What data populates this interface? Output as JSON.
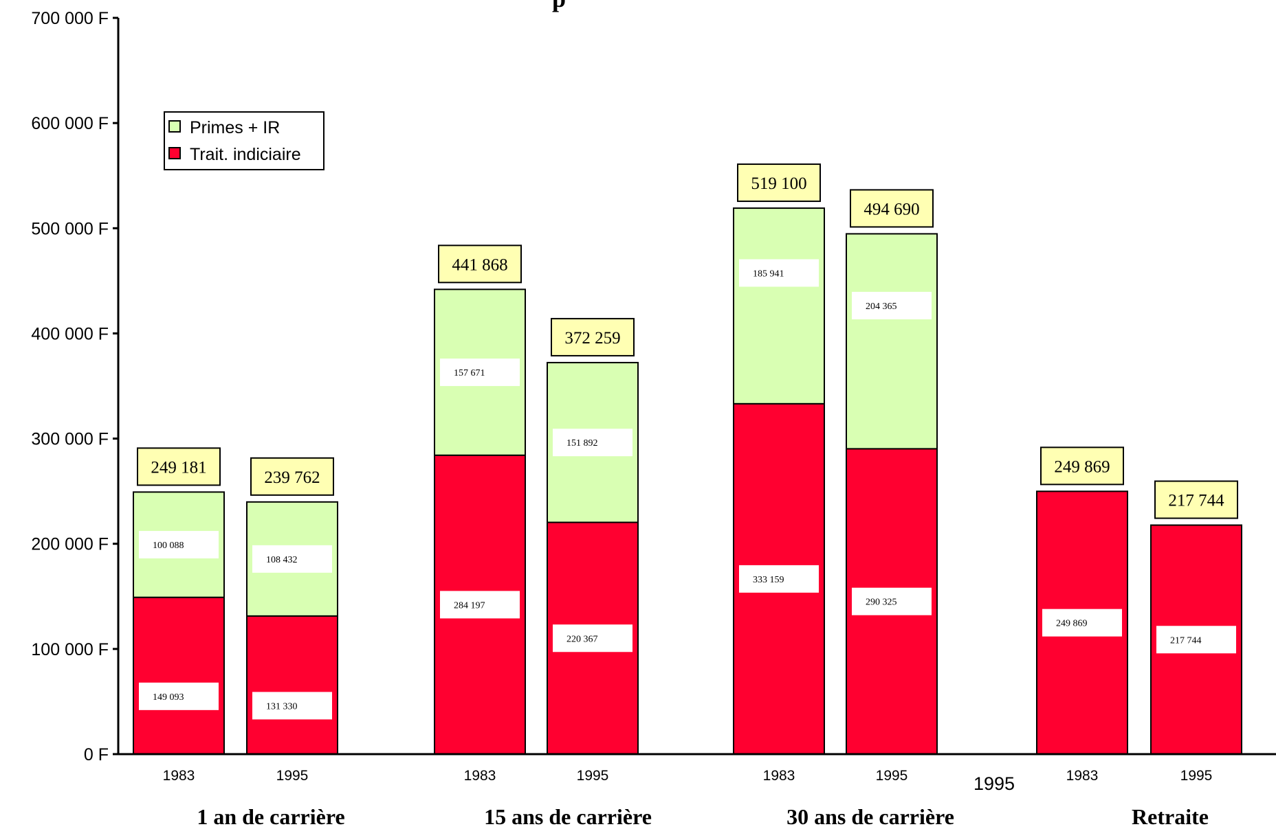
{
  "chart_data": {
    "type": "bar",
    "stacked": true,
    "title": "p",
    "y_ticks": [
      "0 F",
      "100 000 F",
      "200 000 F",
      "300 000 F",
      "400 000 F",
      "500 000 F",
      "600 000 F",
      "700 000 F"
    ],
    "ylim": [
      0,
      700000
    ],
    "grid": false,
    "legend_position": "top-left",
    "legend": [
      {
        "name": "Primes + IR",
        "color": "#d9ffb3"
      },
      {
        "name": "Trait. indiciaire",
        "color": "#ff0030"
      }
    ],
    "groups": [
      "1 an de carrière",
      "15 ans de carrière",
      "30 ans de carrière",
      "Retraite"
    ],
    "bars": [
      {
        "group": 0,
        "year": "1983",
        "trait": 149093,
        "primes": 100088,
        "total": 249181,
        "trait_label": "149 093",
        "primes_label": "100 088",
        "total_label": "249 181"
      },
      {
        "group": 0,
        "year": "1995",
        "trait": 131330,
        "primes": 108432,
        "total": 239762,
        "trait_label": "131 330",
        "primes_label": "108 432",
        "total_label": "239 762"
      },
      {
        "group": 1,
        "year": "1983",
        "trait": 284197,
        "primes": 157671,
        "total": 441868,
        "trait_label": "284 197",
        "primes_label": "157 671",
        "total_label": "441 868"
      },
      {
        "group": 1,
        "year": "1995",
        "trait": 220367,
        "primes": 151892,
        "total": 372259,
        "trait_label": "220 367",
        "primes_label": "151 892",
        "total_label": "372 259"
      },
      {
        "group": 2,
        "year": "1983",
        "trait": 333159,
        "primes": 185941,
        "total": 519100,
        "trait_label": "333 159",
        "primes_label": "185 941",
        "total_label": "519 100"
      },
      {
        "group": 2,
        "year": "1995",
        "trait": 290325,
        "primes": 204365,
        "total": 494690,
        "trait_label": "290 325",
        "primes_label": "204 365",
        "total_label": "494 690"
      },
      {
        "group": 3,
        "year": "1983",
        "trait": 249869,
        "primes": 0,
        "total": 249869,
        "trait_label": "249 869",
        "primes_label": "",
        "total_label": "249 869"
      },
      {
        "group": 3,
        "year": "1995",
        "trait": 217744,
        "primes": 0,
        "total": 217744,
        "trait_label": "217 744",
        "primes_label": "",
        "total_label": "217 744"
      }
    ],
    "stray_label": "1995",
    "colors": {
      "primes": "#d9ffb3",
      "trait": "#ff0030",
      "total_box": "#ffffb3",
      "seg_box": "#ffffff"
    }
  }
}
